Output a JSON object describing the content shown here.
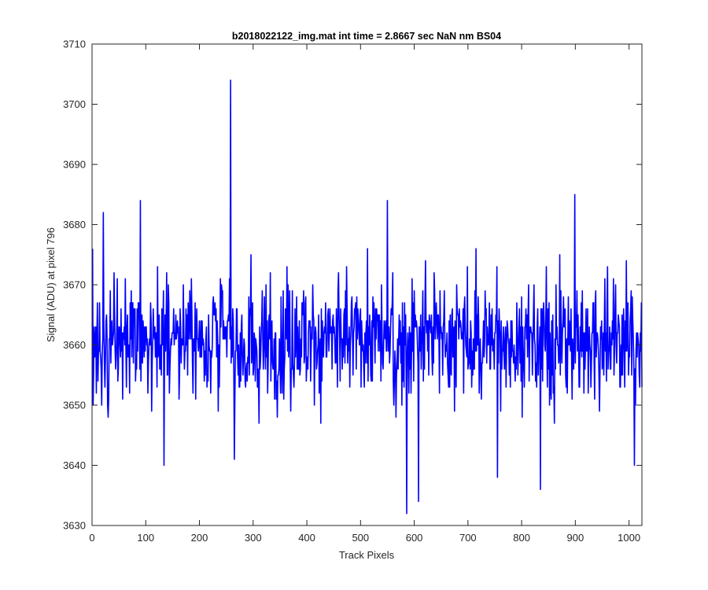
{
  "chart_data": {
    "type": "line",
    "title": "b2018022122_img.mat int time = 2.8667 sec  NaN nm BS04",
    "xlabel": "Track Pixels",
    "ylabel": "Signal (ADU) at pixel 796",
    "xlim": [
      0,
      1024
    ],
    "ylim": [
      3630,
      3710
    ],
    "x_ticks": [
      0,
      100,
      200,
      300,
      400,
      500,
      600,
      700,
      800,
      900,
      1000
    ],
    "y_ticks": [
      3630,
      3640,
      3650,
      3660,
      3670,
      3680,
      3690,
      3700,
      3710
    ],
    "grid": false,
    "legend": "none",
    "series": [
      {
        "color": "#0000ff",
        "x_start": 1,
        "x_step": 1,
        "n_points": 1024,
        "values_description": "noise around ~3661 ADU, range roughly 3632 to 3704",
        "notable_points": [
          {
            "x": 1,
            "y": 3676
          },
          {
            "x": 21,
            "y": 3682
          },
          {
            "x": 90,
            "y": 3684
          },
          {
            "x": 134,
            "y": 3640
          },
          {
            "x": 258,
            "y": 3704
          },
          {
            "x": 265,
            "y": 3641
          },
          {
            "x": 550,
            "y": 3684
          },
          {
            "x": 586,
            "y": 3632
          },
          {
            "x": 608,
            "y": 3634
          },
          {
            "x": 755,
            "y": 3638
          },
          {
            "x": 835,
            "y": 3636
          },
          {
            "x": 899,
            "y": 3685
          },
          {
            "x": 1010,
            "y": 3640
          }
        ]
      }
    ]
  }
}
